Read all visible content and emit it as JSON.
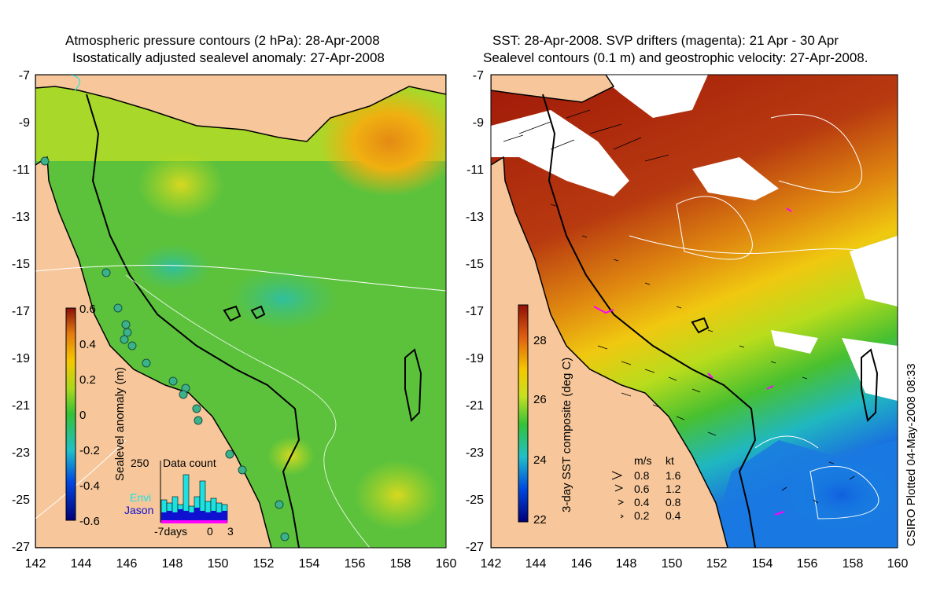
{
  "left_panel": {
    "title_line1": "Atmospheric pressure contours (2 hPa): 28-Apr-2008",
    "title_line2": "Isostatically adjusted sealevel anomaly: 27-Apr-2008",
    "colorbar": {
      "label": "Sealevel anomaly (m)",
      "ticks": [
        "0.6",
        "0.4",
        "0.2",
        "0",
        "-0.2",
        "-0.4",
        "-0.6"
      ]
    },
    "data_count": {
      "title": "Data count",
      "ymax_label": "250",
      "envi_label": "Envi",
      "jason_label": "Jason",
      "xlabel_start": "-7days",
      "xlabel_zero": "0",
      "xlabel_end": "3"
    }
  },
  "right_panel": {
    "title_line1": "SST: 28-Apr-2008. SVP drifters (magenta): 21 Apr - 30 Apr",
    "title_line2": "Sealevel contours (0.1 m) and geostrophic velocity: 27-Apr-2008.",
    "colorbar": {
      "label": "3-day SST composite (deg C)",
      "ticks": [
        "28",
        "26",
        "24",
        "22"
      ]
    },
    "velocity_legend": {
      "header_ms": "m/s",
      "header_kt": "kt",
      "rows": [
        {
          "ms": "0.8",
          "kt": "1.6"
        },
        {
          "ms": "0.6",
          "kt": "1.2"
        },
        {
          "ms": "0.4",
          "kt": "0.8"
        },
        {
          "ms": "0.2",
          "kt": "0.4"
        }
      ]
    }
  },
  "axes": {
    "lat_ticks": [
      "-7",
      "-9",
      "-11",
      "-13",
      "-15",
      "-17",
      "-19",
      "-21",
      "-23",
      "-25",
      "-27"
    ],
    "lon_ticks": [
      "142",
      "144",
      "146",
      "148",
      "150",
      "152",
      "154",
      "156",
      "158",
      "160"
    ]
  },
  "credit": "CSIRO Plotted 04-May-2008 08:33",
  "colors": {
    "land": "#f7c79b",
    "sla_ocean": "#5cc23c",
    "sst_warm": "#a01808",
    "sst_cool": "#1a8be0",
    "drifter": "#ff00ff"
  }
}
